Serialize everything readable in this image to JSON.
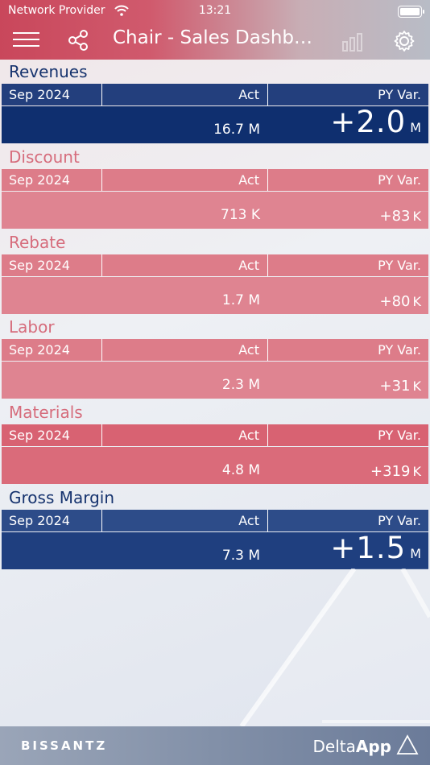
{
  "status_bar": {
    "carrier": "Network Provider",
    "time": "13:21"
  },
  "nav": {
    "title": "Chair - Sales Dashbo…"
  },
  "kpis": [
    {
      "title": "Revenues",
      "period": "Sep 2024",
      "act_label": "Act",
      "var_label": "PY Var.",
      "act": "16.7 M",
      "var_num": "+2.0",
      "var_unit": "M"
    },
    {
      "title": "Discount",
      "period": "Sep 2024",
      "act_label": "Act",
      "var_label": "PY Var.",
      "act": "713 K",
      "var_num": "+83",
      "var_unit": "K"
    },
    {
      "title": "Rebate",
      "period": "Sep 2024",
      "act_label": "Act",
      "var_label": "PY Var.",
      "act": "1.7 M",
      "var_num": "+80",
      "var_unit": "K"
    },
    {
      "title": "Labor",
      "period": "Sep 2024",
      "act_label": "Act",
      "var_label": "PY Var.",
      "act": "2.3 M",
      "var_num": "+31",
      "var_unit": "K"
    },
    {
      "title": "Materials",
      "period": "Sep 2024",
      "act_label": "Act",
      "var_label": "PY Var.",
      "act": "4.8 M",
      "var_num": "+319",
      "var_unit": "K"
    },
    {
      "title": "Gross Margin",
      "period": "Sep 2024",
      "act_label": "Act",
      "var_label": "PY Var.",
      "act": "7.3 M",
      "var_num": "+1.5",
      "var_unit": "M"
    }
  ],
  "footer": {
    "brand": "BISSANTZ",
    "app_light": "Delta",
    "app_bold": "App"
  },
  "colors": {
    "blue": "#0f2f6f",
    "red": "#df8491",
    "red_strong": "#da6b7a"
  }
}
